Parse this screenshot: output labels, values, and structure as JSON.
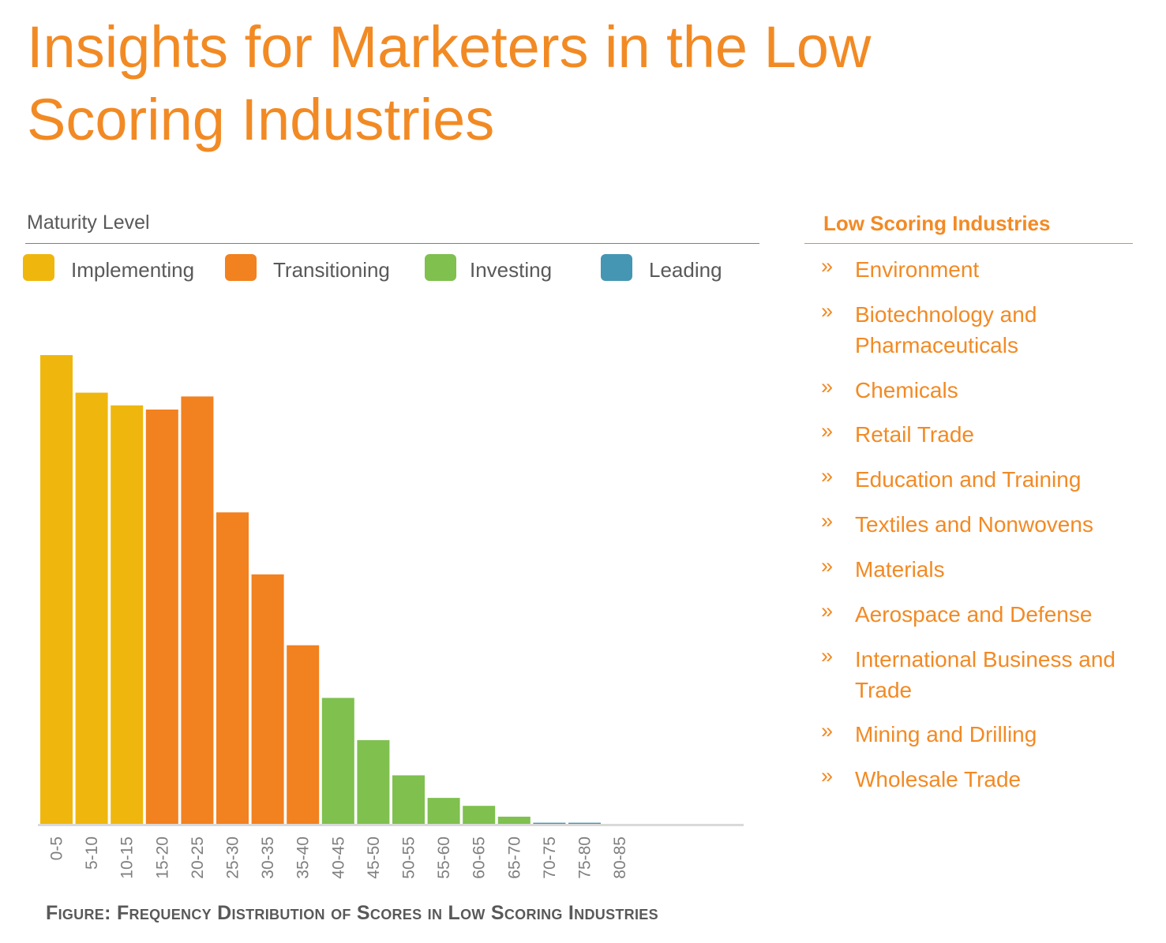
{
  "page": {
    "title": "Insights for Marketers in the Low Scoring Industries",
    "caption": "Figure: Frequency Distribution of Scores in Low Scoring Industries"
  },
  "legend": {
    "heading": "Maturity Level",
    "items": [
      {
        "label": "Implementing",
        "color": "#efb70d"
      },
      {
        "label": "Transitioning",
        "color": "#f28120"
      },
      {
        "label": "Investing",
        "color": "#7fc04f"
      },
      {
        "label": "Leading",
        "color": "#4596b3"
      }
    ]
  },
  "sidebar": {
    "heading": "Low Scoring Industries",
    "bullet": "»",
    "items": [
      "Environment",
      "Biotechnology and Pharmaceuticals",
      "Chemicals",
      "Retail Trade",
      "Education and Training",
      "Textiles and Nonwovens",
      "Materials",
      "Aerospace and Defense",
      "International Business and Trade",
      "Mining and Drilling",
      "Wholesale Trade"
    ]
  },
  "chart_data": {
    "type": "bar",
    "title": "Frequency Distribution of Scores in Low Scoring Industries",
    "xlabel": "",
    "ylabel": "",
    "categories": [
      "0-5",
      "5-10",
      "10-15",
      "15-20",
      "20-25",
      "25-30",
      "30-35",
      "35-40",
      "40-45",
      "45-50",
      "50-55",
      "55-60",
      "60-65",
      "65-70",
      "70-75",
      "75-80",
      "80-85"
    ],
    "values": [
      100,
      92,
      89.3,
      88.4,
      91.2,
      66.5,
      53.3,
      38.2,
      27,
      18,
      10.5,
      5.7,
      4,
      1.7,
      0.4,
      0.4,
      0
    ],
    "levels": [
      "Implementing",
      "Implementing",
      "Implementing",
      "Transitioning",
      "Transitioning",
      "Transitioning",
      "Transitioning",
      "Transitioning",
      "Investing",
      "Investing",
      "Investing",
      "Investing",
      "Investing",
      "Investing",
      "Leading",
      "Leading",
      "Leading"
    ],
    "ylim": [
      0,
      100
    ],
    "grid": false
  }
}
